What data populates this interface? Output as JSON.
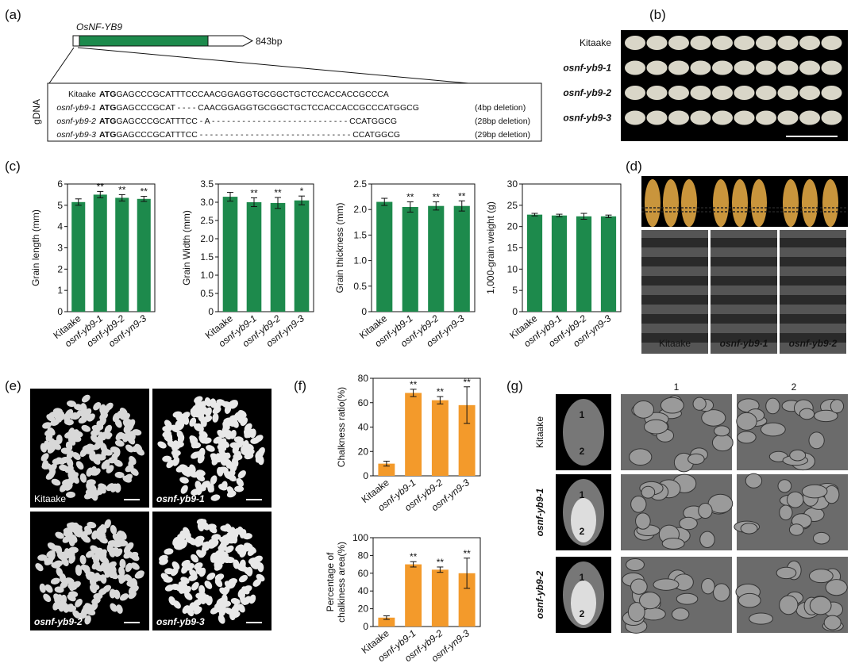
{
  "panels": {
    "a": {
      "label": "(a)",
      "gene": "OsNF-YB9",
      "length": "843bp",
      "axis_label": "gDNA",
      "rows": [
        {
          "name": "Kitaake",
          "start": "ATG",
          "seq": "GAGCCCGCATTTCCCAACGGAGGTGCGGCTGCTCCACCACCGCCCA"
        },
        {
          "name": "osnf-yb9-1",
          "start": "ATG",
          "seq": "GAGCCCGCAT - - - - CAACGGAGGTGCGGCTGCTCCACCACCGCCCATGGCG",
          "note": "(4bp deletion)"
        },
        {
          "name": "osnf-yb9-2",
          "start": "ATG",
          "seq": "GAGCCCGCATTTCC - A - - - - - - - - - - - - - - - - - - - - - - - - - - - CCATGGCG",
          "note": "(28bp deletion)"
        },
        {
          "name": "osnf-yb9-3",
          "start": "ATG",
          "seq": "GAGCCCGCATTTCC - - - - - - - - - - - - - - - - - - - - - - - - - - - - - - CCATGGCG",
          "note": "(29bp deletion)"
        }
      ]
    },
    "b": {
      "label": "(b)",
      "rows": [
        "Kitaake",
        "osnf-yb9-1",
        "osnf-yb9-2",
        "osnf-yb9-3"
      ]
    },
    "c": {
      "label": "(c)"
    },
    "d": {
      "label": "(d)",
      "captions": [
        "Kitaake",
        "osnf-yb9-1",
        "osnf-yb9-2"
      ]
    },
    "e": {
      "label": "(e)",
      "captions": [
        "Kitaake",
        "osnf-yb9-1",
        "osnf-yb9-2",
        "osnf-yb9-3"
      ]
    },
    "f": {
      "label": "(f)"
    },
    "g": {
      "label": "(g)",
      "columns": [
        "1",
        "2"
      ],
      "rows": [
        "Kitaake",
        "osnf-yb9-1",
        "osnf-yb9-2"
      ],
      "region_labels": [
        "1",
        "2"
      ]
    }
  },
  "chart_data": [
    {
      "type": "bar",
      "y_label": "Grain length (mm)",
      "categories": [
        "Kitaake",
        "osnf-yb9-1",
        "osnf-yb9-2",
        "osnf-yn9-3"
      ],
      "values": [
        5.15,
        5.5,
        5.35,
        5.3
      ],
      "errors": [
        0.15,
        0.15,
        0.15,
        0.12
      ],
      "annotations": [
        null,
        "**",
        "**",
        "**"
      ],
      "color": "#1d8a4c",
      "ylim": [
        0,
        6
      ],
      "yticks": [
        0,
        1,
        2,
        3,
        4,
        5,
        6
      ]
    },
    {
      "type": "bar",
      "y_label": "Grain Width (mm)",
      "categories": [
        "Kitaake",
        "osnf-yb9-1",
        "osnf-yb9-2",
        "osnf-yn9-3"
      ],
      "values": [
        3.15,
        3.0,
        2.98,
        3.05
      ],
      "errors": [
        0.12,
        0.12,
        0.15,
        0.12
      ],
      "annotations": [
        null,
        "**",
        "**",
        "*"
      ],
      "color": "#1d8a4c",
      "ylim": [
        0,
        3.5
      ],
      "yticks": [
        0,
        0.5,
        {
          "value": 1,
          "label": "1.0"
        },
        1.5,
        {
          "value": 2,
          "label": "2.0"
        },
        2.5,
        {
          "value": 3,
          "label": "3.0"
        },
        3.5
      ]
    },
    {
      "type": "bar",
      "y_label": "Grain thickness (mm)",
      "categories": [
        "Kitaake",
        "osnf-yb9-1",
        "osnf-yb9-2",
        "osnf-yn9-3"
      ],
      "values": [
        2.15,
        2.05,
        2.07,
        2.07
      ],
      "errors": [
        0.07,
        0.1,
        0.08,
        0.1
      ],
      "annotations": [
        null,
        "**",
        "**",
        "**"
      ],
      "color": "#1d8a4c",
      "ylim": [
        0,
        2.5
      ],
      "yticks": [
        0,
        0.5,
        {
          "value": 1,
          "label": "1.0"
        },
        1.5,
        {
          "value": 2,
          "label": "2.0"
        },
        2.5
      ]
    },
    {
      "type": "bar",
      "y_label": "1,000-grain weight (g)",
      "categories": [
        "Kitaake",
        "osnf-yb9-1",
        "osnf-yb9-2",
        "osnf-yn9-3"
      ],
      "values": [
        22.8,
        22.6,
        22.4,
        22.4
      ],
      "errors": [
        0.3,
        0.3,
        0.7,
        0.3
      ],
      "color": "#1d8a4c",
      "ylim": [
        0,
        30
      ],
      "yticks": [
        0,
        5,
        10,
        15,
        20,
        25,
        30
      ]
    },
    {
      "type": "bar",
      "y_label": "Chalkness ratio(%)",
      "categories": [
        "Kitaake",
        "osnf-yb9-1",
        "osnf-yb9-2",
        "osnf-yn9-3"
      ],
      "values": [
        10,
        68,
        62,
        58
      ],
      "errors": [
        2,
        3,
        3,
        15
      ],
      "annotations": [
        null,
        "**",
        "**",
        "**"
      ],
      "color": "#f39a2b",
      "ylim": [
        0,
        80
      ],
      "yticks": [
        0,
        20,
        40,
        60,
        80
      ]
    },
    {
      "type": "bar",
      "y_label": [
        "Percentage of",
        "chalkiness area(%)"
      ],
      "categories": [
        "Kitaake",
        "osnf-yb9-1",
        "osnf-yb9-2",
        "osnf-yn9-3"
      ],
      "values": [
        10,
        70,
        64,
        60
      ],
      "errors": [
        2,
        3,
        3,
        17
      ],
      "annotations": [
        null,
        "**",
        "**",
        "**"
      ],
      "color": "#f39a2b",
      "ylim": [
        0,
        100
      ],
      "yticks": [
        0,
        20,
        40,
        60,
        80,
        100
      ]
    }
  ]
}
